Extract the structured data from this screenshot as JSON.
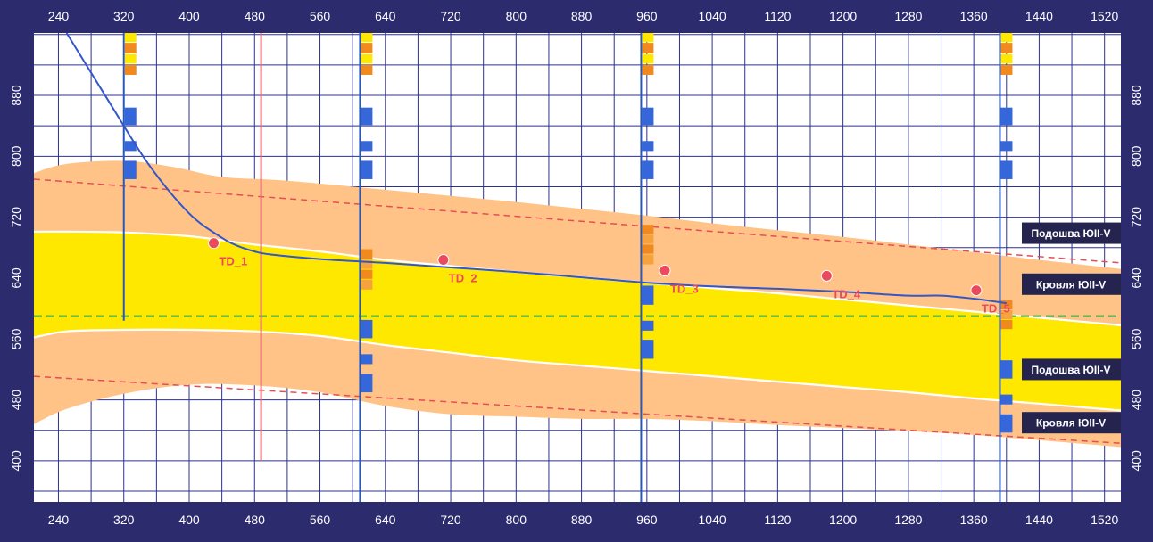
{
  "chart_data": {
    "type": "line",
    "title": "",
    "xlabel": "",
    "ylabel": "",
    "xlim": [
      210,
      1540
    ],
    "ylim": [
      346,
      962
    ],
    "x_ticks": [
      240,
      320,
      400,
      480,
      560,
      640,
      720,
      800,
      880,
      960,
      1040,
      1120,
      1200,
      1280,
      1360,
      1440,
      1520
    ],
    "y_ticks": [
      400,
      480,
      560,
      640,
      720,
      800,
      880
    ],
    "grid": true,
    "colors": {
      "background": "#2b2b6e",
      "plot_bg": "#ffffff",
      "grid": "#2e318f",
      "band_outer": "#ffc387",
      "band_inner": "#ffe800",
      "boundary": "#ffffff",
      "dashed_limit": "#e54d57",
      "target_line": "#36a236",
      "trajectory": "#3356c8",
      "well_line": "#2958b8",
      "td_marker": "#eb4a5e",
      "td_label": "#eb4a5e",
      "red_vertical": "#e66b73",
      "log_blue": "#3566da",
      "log_orange": "#f08a1e",
      "log_yellow": "#ffe800",
      "log_light_orange": "#f6a33e",
      "label_box": "#24244f",
      "label_text": "#ffffff"
    },
    "series": [
      {
        "role": "outer_band_top",
        "x": [
          210,
          250,
          320,
          380,
          440,
          520,
          640,
          720,
          800,
          880,
          960,
          1040,
          1120,
          1200,
          1280,
          1360,
          1440,
          1540
        ],
        "y": [
          778,
          790,
          794,
          786,
          773,
          768,
          756,
          748,
          740,
          731,
          722,
          712,
          703,
          694,
          684,
          674,
          664,
          652
        ]
      },
      {
        "role": "inner_band_top",
        "x": [
          210,
          250,
          320,
          400,
          480,
          560,
          640,
          720,
          800,
          880,
          960,
          1040,
          1120,
          1200,
          1280,
          1360,
          1440,
          1540
        ],
        "y": [
          701,
          701,
          700,
          695,
          684,
          675,
          664,
          656,
          648,
          641,
          634,
          627,
          620,
          612,
          604,
          596,
          588,
          578
        ]
      },
      {
        "role": "inner_band_bottom",
        "x": [
          210,
          250,
          320,
          400,
          480,
          560,
          640,
          720,
          800,
          880,
          960,
          1040,
          1120,
          1200,
          1280,
          1360,
          1440,
          1540
        ],
        "y": [
          562,
          570,
          572,
          572,
          570,
          564,
          552,
          542,
          532,
          525,
          518,
          511,
          504,
          497,
          490,
          482,
          475,
          466
        ]
      },
      {
        "role": "outer_band_bottom",
        "x": [
          210,
          250,
          320,
          400,
          480,
          560,
          640,
          720,
          800,
          880,
          960,
          1040,
          1120,
          1200,
          1280,
          1360,
          1440,
          1540
        ],
        "y": [
          448,
          468,
          488,
          500,
          499,
          490,
          472,
          461,
          458,
          455,
          455,
          452,
          447,
          443,
          439,
          434,
          427,
          418
        ]
      },
      {
        "role": "upper_dashed_limit",
        "x": [
          210,
          1540
        ],
        "y": [
          770,
          660
        ],
        "style": "dashed"
      },
      {
        "role": "lower_dashed_limit",
        "x": [
          210,
          1540
        ],
        "y": [
          511,
          423
        ],
        "style": "dashed"
      },
      {
        "role": "target_line",
        "x": [
          210,
          1540
        ],
        "y": [
          590,
          590
        ],
        "style": "dashed"
      },
      {
        "role": "trajectory",
        "x": [
          250,
          300,
          350,
          400,
          440,
          460,
          480,
          500,
          560,
          640,
          720,
          800,
          880,
          960,
          1040,
          1120,
          1200,
          1280,
          1320,
          1360,
          1400
        ],
        "y": [
          962,
          875,
          790,
          725,
          693,
          682,
          675,
          671,
          665,
          660,
          654,
          648,
          641,
          634,
          629,
          626,
          622,
          617,
          617,
          613,
          607
        ]
      }
    ],
    "td_points": [
      {
        "label": "TD_1",
        "x": 430,
        "y": 686
      },
      {
        "label": "TD_2",
        "x": 711,
        "y": 664
      },
      {
        "label": "TD_3",
        "x": 982,
        "y": 650
      },
      {
        "label": "TD_4",
        "x": 1180,
        "y": 643
      },
      {
        "label": "TD_5",
        "x": 1363,
        "y": 624
      }
    ],
    "red_vertical_x": 488,
    "red_vertical_y": [
      400,
      962
    ],
    "wells": [
      {
        "x": 320,
        "y_from": 584,
        "y_to": 962,
        "log_blocks": [
          {
            "y0": 950,
            "y1": 962,
            "color": "log_yellow"
          },
          {
            "y0": 935,
            "y1": 949,
            "color": "log_orange"
          },
          {
            "y0": 922,
            "y1": 934,
            "color": "log_yellow"
          },
          {
            "y0": 907,
            "y1": 920,
            "color": "log_orange"
          },
          {
            "y0": 841,
            "y1": 864,
            "color": "log_blue"
          },
          {
            "y0": 807,
            "y1": 820,
            "color": "log_blue"
          },
          {
            "y0": 770,
            "y1": 794,
            "color": "log_blue"
          }
        ]
      },
      {
        "x": 609,
        "y_from": 346,
        "y_to": 962,
        "log_blocks": [
          {
            "y0": 950,
            "y1": 962,
            "color": "log_yellow"
          },
          {
            "y0": 935,
            "y1": 949,
            "color": "log_orange"
          },
          {
            "y0": 922,
            "y1": 934,
            "color": "log_yellow"
          },
          {
            "y0": 907,
            "y1": 920,
            "color": "log_orange"
          },
          {
            "y0": 841,
            "y1": 864,
            "color": "log_blue"
          },
          {
            "y0": 807,
            "y1": 820,
            "color": "log_blue"
          },
          {
            "y0": 770,
            "y1": 794,
            "color": "log_blue"
          },
          {
            "y0": 665,
            "y1": 678,
            "color": "log_orange"
          },
          {
            "y0": 652,
            "y1": 664,
            "color": "log_light_orange"
          },
          {
            "y0": 639,
            "y1": 651,
            "color": "log_orange"
          },
          {
            "y0": 625,
            "y1": 638,
            "color": "log_light_orange"
          },
          {
            "y0": 561,
            "y1": 585,
            "color": "log_blue"
          },
          {
            "y0": 527,
            "y1": 540,
            "color": "log_blue"
          },
          {
            "y0": 490,
            "y1": 514,
            "color": "log_blue"
          }
        ]
      },
      {
        "x": 953,
        "y_from": 346,
        "y_to": 962,
        "log_blocks": [
          {
            "y0": 950,
            "y1": 962,
            "color": "log_yellow"
          },
          {
            "y0": 935,
            "y1": 949,
            "color": "log_orange"
          },
          {
            "y0": 922,
            "y1": 934,
            "color": "log_yellow"
          },
          {
            "y0": 907,
            "y1": 920,
            "color": "log_orange"
          },
          {
            "y0": 841,
            "y1": 864,
            "color": "log_blue"
          },
          {
            "y0": 807,
            "y1": 820,
            "color": "log_blue"
          },
          {
            "y0": 770,
            "y1": 794,
            "color": "log_blue"
          },
          {
            "y0": 698,
            "y1": 710,
            "color": "log_orange"
          },
          {
            "y0": 685,
            "y1": 697,
            "color": "log_light_orange"
          },
          {
            "y0": 672,
            "y1": 684,
            "color": "log_orange"
          },
          {
            "y0": 658,
            "y1": 671,
            "color": "log_light_orange"
          },
          {
            "y0": 605,
            "y1": 630,
            "color": "log_blue"
          },
          {
            "y0": 571,
            "y1": 584,
            "color": "log_blue"
          },
          {
            "y0": 534,
            "y1": 559,
            "color": "log_blue"
          }
        ]
      },
      {
        "x": 1392,
        "y_from": 346,
        "y_to": 962,
        "log_blocks": [
          {
            "y0": 950,
            "y1": 962,
            "color": "log_yellow"
          },
          {
            "y0": 935,
            "y1": 949,
            "color": "log_orange"
          },
          {
            "y0": 922,
            "y1": 934,
            "color": "log_yellow"
          },
          {
            "y0": 907,
            "y1": 920,
            "color": "log_orange"
          },
          {
            "y0": 841,
            "y1": 864,
            "color": "log_blue"
          },
          {
            "y0": 807,
            "y1": 820,
            "color": "log_blue"
          },
          {
            "y0": 770,
            "y1": 794,
            "color": "log_blue"
          },
          {
            "y0": 599,
            "y1": 611,
            "color": "log_orange"
          },
          {
            "y0": 586,
            "y1": 598,
            "color": "log_light_orange"
          },
          {
            "y0": 573,
            "y1": 585,
            "color": "log_orange"
          },
          {
            "y0": 508,
            "y1": 532,
            "color": "log_blue"
          },
          {
            "y0": 474,
            "y1": 487,
            "color": "log_blue"
          },
          {
            "y0": 437,
            "y1": 461,
            "color": "log_blue"
          }
        ]
      }
    ],
    "boundary_labels": [
      {
        "text": "Подошва ЮII-V",
        "y": 699
      },
      {
        "text": "Кровля ЮII-V",
        "y": 632
      },
      {
        "text": "Подошва ЮII-V",
        "y": 520
      },
      {
        "text": "Кровля ЮII-V",
        "y": 450
      }
    ]
  }
}
